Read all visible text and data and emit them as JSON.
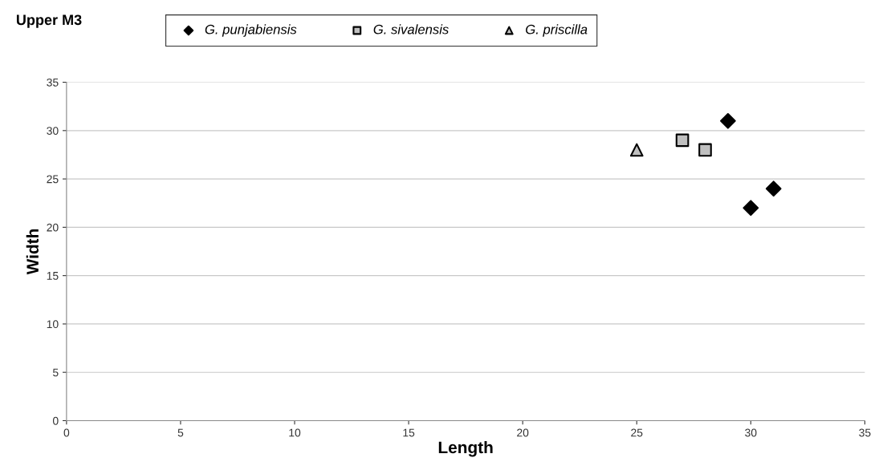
{
  "chart_data": {
    "type": "scatter",
    "title": "Upper M3",
    "xlabel": "Length",
    "ylabel": "Width",
    "series": [
      {
        "name": "G. punjabiensis",
        "color": "#000000",
        "marker": "diamond",
        "x": [
          29,
          30,
          31
        ],
        "values": [
          31,
          22,
          24
        ]
      },
      {
        "name": "G. sivalensis",
        "color": "#c0c0c0",
        "marker": "square",
        "x": [
          27,
          28
        ],
        "values": [
          29,
          28
        ]
      },
      {
        "name": "G. priscilla",
        "color": "#c0c0c0",
        "marker": "triangle",
        "x": [
          25
        ],
        "values": [
          28
        ]
      }
    ],
    "xlim": [
      0,
      35
    ],
    "xticks": [
      0,
      5,
      10,
      15,
      20,
      25,
      30,
      35
    ],
    "ylim": [
      0,
      35
    ],
    "yticks": [
      0,
      5,
      10,
      15,
      20,
      25,
      30,
      35
    ],
    "grid": "y",
    "legend": "top"
  }
}
